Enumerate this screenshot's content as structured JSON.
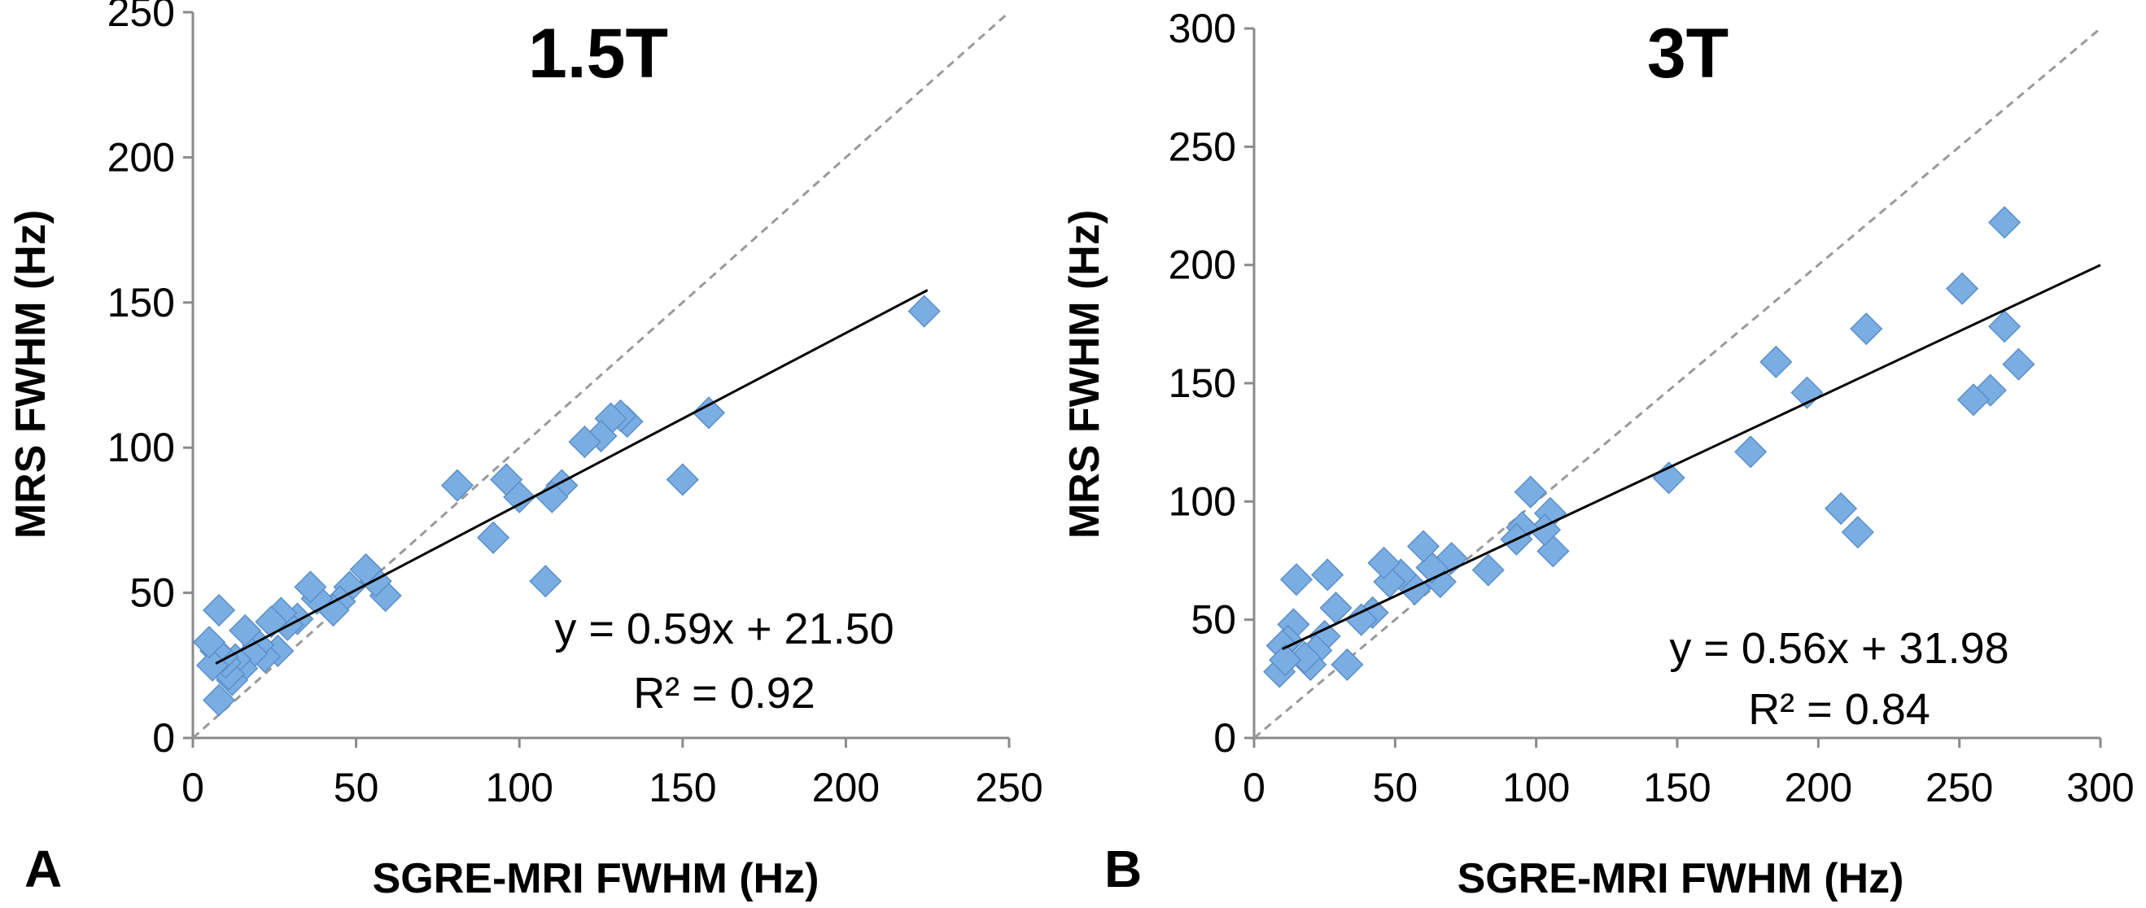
{
  "chart_data": [
    {
      "type": "scatter",
      "panel_label": "A",
      "title": "1.5T",
      "xlabel": "SGRE-MRI FWHM (Hz)",
      "ylabel": "MRS FWHM (Hz)",
      "xlim": [
        0,
        250
      ],
      "ylim": [
        0,
        250
      ],
      "xticks": [
        "0",
        "50",
        "100",
        "150",
        "200",
        "250"
      ],
      "yticks": [
        "0",
        "50",
        "100",
        "150",
        "200",
        "250"
      ],
      "marker_color": "#7aaee2",
      "marker_edge_color": "#5b8fc9",
      "identity_line": true,
      "trendline": {
        "slope": 0.59,
        "intercept": 21.5,
        "x_range": [
          7,
          225
        ]
      },
      "equation": "y = 0.59x + 21.50",
      "r_squared": "R² = 0.92",
      "points": [
        [
          224,
          147
        ],
        [
          158,
          112
        ],
        [
          150,
          89
        ],
        [
          133,
          109
        ],
        [
          131,
          111
        ],
        [
          128,
          110
        ],
        [
          125,
          104
        ],
        [
          120,
          102
        ],
        [
          113,
          87
        ],
        [
          110,
          83
        ],
        [
          108,
          54
        ],
        [
          100,
          83
        ],
        [
          96,
          89
        ],
        [
          92,
          69
        ],
        [
          81,
          87
        ],
        [
          59,
          49
        ],
        [
          56,
          54
        ],
        [
          53,
          58
        ],
        [
          48,
          52
        ],
        [
          45,
          47
        ],
        [
          43,
          44
        ],
        [
          38,
          48
        ],
        [
          36,
          52
        ],
        [
          32,
          41
        ],
        [
          29,
          39
        ],
        [
          27,
          43
        ],
        [
          26,
          30
        ],
        [
          24,
          40
        ],
        [
          22,
          28
        ],
        [
          20,
          32
        ],
        [
          18,
          29
        ],
        [
          16,
          37
        ],
        [
          15,
          24
        ],
        [
          13,
          27
        ],
        [
          12,
          20
        ],
        [
          11,
          22
        ],
        [
          10,
          26
        ],
        [
          9,
          28
        ],
        [
          8,
          44
        ],
        [
          7,
          30
        ],
        [
          6,
          25
        ],
        [
          5,
          33
        ],
        [
          8,
          13
        ]
      ]
    },
    {
      "type": "scatter",
      "panel_label": "B",
      "title": "3T",
      "xlabel": "SGRE-MRI FWHM (Hz)",
      "ylabel": "MRS FWHM (Hz)",
      "xlim": [
        0,
        300
      ],
      "ylim": [
        0,
        300
      ],
      "xticks": [
        "0",
        "50",
        "100",
        "150",
        "200",
        "250",
        "300"
      ],
      "yticks": [
        "0",
        "50",
        "100",
        "150",
        "200",
        "250",
        "300"
      ],
      "marker_color": "#7aaee2",
      "marker_edge_color": "#5b8fc9",
      "identity_line": true,
      "trendline": {
        "slope": 0.56,
        "intercept": 31.98,
        "x_range": [
          10,
          300
        ]
      },
      "equation": "y = 0.56x + 31.98",
      "r_squared": "R² = 0.84",
      "points": [
        [
          266,
          218
        ],
        [
          251,
          190
        ],
        [
          271,
          158
        ],
        [
          266,
          174
        ],
        [
          261,
          147
        ],
        [
          255,
          143
        ],
        [
          217,
          173
        ],
        [
          214,
          87
        ],
        [
          208,
          97
        ],
        [
          196,
          146
        ],
        [
          185,
          159
        ],
        [
          176,
          121
        ],
        [
          147,
          110
        ],
        [
          106,
          79
        ],
        [
          105,
          95
        ],
        [
          103,
          88
        ],
        [
          98,
          104
        ],
        [
          95,
          89
        ],
        [
          93,
          84
        ],
        [
          83,
          71
        ],
        [
          70,
          76
        ],
        [
          66,
          66
        ],
        [
          63,
          72
        ],
        [
          60,
          81
        ],
        [
          57,
          63
        ],
        [
          52,
          69
        ],
        [
          48,
          66
        ],
        [
          46,
          74
        ],
        [
          42,
          53
        ],
        [
          38,
          50
        ],
        [
          33,
          31
        ],
        [
          29,
          55
        ],
        [
          26,
          69
        ],
        [
          25,
          43
        ],
        [
          22,
          37
        ],
        [
          20,
          31
        ],
        [
          18,
          34
        ],
        [
          15,
          67
        ],
        [
          14,
          48
        ],
        [
          12,
          41
        ],
        [
          10,
          39
        ],
        [
          9,
          28
        ],
        [
          11,
          33
        ]
      ]
    }
  ]
}
